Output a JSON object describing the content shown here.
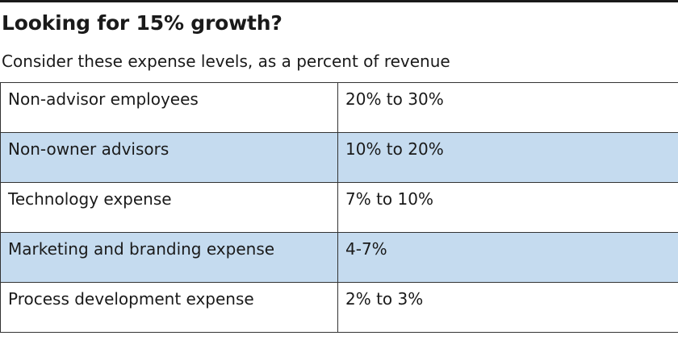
{
  "title": "Looking for 15% growth?",
  "subtitle": "Consider these expense levels, as a percent of revenue",
  "colors": {
    "rule": "#1a1a1a",
    "row_shade": "#c5dbef",
    "border": "#333333"
  },
  "rows": [
    {
      "category": "Non-advisor employees",
      "range": "20% to 30%",
      "shaded": false
    },
    {
      "category": "Non-owner advisors",
      "range": "10% to 20%",
      "shaded": true
    },
    {
      "category": "Technology expense",
      "range": "7% to 10%",
      "shaded": false
    },
    {
      "category": "Marketing and branding expense",
      "range": "4-7%",
      "shaded": true
    },
    {
      "category": "Process development expense",
      "range": "2% to 3%",
      "shaded": false
    }
  ]
}
